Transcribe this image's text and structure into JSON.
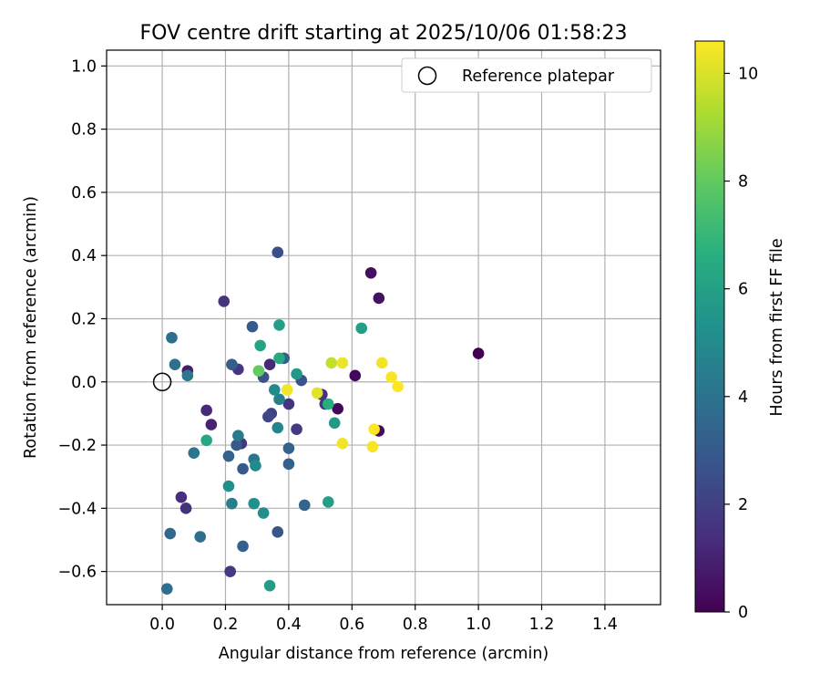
{
  "chart_data": {
    "type": "scatter",
    "title": "FOV centre drift starting at 2025/10/06 01:58:23",
    "xlabel": "Angular distance from reference (arcmin)",
    "ylabel": "Rotation from reference (arcmin)",
    "xlim": [
      -0.176,
      1.576
    ],
    "ylim": [
      -0.705,
      1.05
    ],
    "grid": true,
    "xticks": [
      0.0,
      0.2,
      0.4,
      0.6,
      0.8,
      1.0,
      1.2,
      1.4
    ],
    "xtick_labels": [
      "0.0",
      "0.2",
      "0.4",
      "0.6",
      "0.8",
      "1.0",
      "1.2",
      "1.4"
    ],
    "yticks": [
      -0.6,
      -0.4,
      -0.2,
      0.0,
      0.2,
      0.4,
      0.6,
      0.8,
      1.0
    ],
    "ytick_labels": [
      "−0.6",
      "−0.4",
      "−0.2",
      "0.0",
      "0.2",
      "0.4",
      "0.6",
      "0.8",
      "1.0"
    ],
    "legend": {
      "position": "top-right",
      "entries": [
        "Reference platepar"
      ]
    },
    "reference_point": {
      "x": 0.0,
      "y": 0.0
    },
    "colorbar": {
      "label": "Hours from first FF file",
      "colormap": "viridis",
      "min": 0,
      "max": 10.6,
      "ticks": [
        0,
        2,
        4,
        6,
        8,
        10
      ],
      "tick_labels": [
        "0",
        "2",
        "4",
        "6",
        "8",
        "10"
      ]
    },
    "points": [
      {
        "x": 1.0,
        "y": 0.09,
        "hours": 0.0
      },
      {
        "x": 0.66,
        "y": 0.345,
        "hours": 0.4
      },
      {
        "x": 0.685,
        "y": 0.265,
        "hours": 0.5
      },
      {
        "x": 0.61,
        "y": 0.02,
        "hours": 0.2
      },
      {
        "x": 0.685,
        "y": -0.155,
        "hours": 0.3
      },
      {
        "x": 0.555,
        "y": -0.085,
        "hours": 0.2
      },
      {
        "x": 0.08,
        "y": 0.035,
        "hours": 0.8
      },
      {
        "x": 0.505,
        "y": -0.04,
        "hours": 1.6
      },
      {
        "x": 0.515,
        "y": -0.07,
        "hours": 1.8
      },
      {
        "x": 0.195,
        "y": 0.255,
        "hours": 1.6
      },
      {
        "x": 0.14,
        "y": -0.09,
        "hours": 1.2
      },
      {
        "x": 0.155,
        "y": -0.135,
        "hours": 1.0
      },
      {
        "x": 0.06,
        "y": -0.365,
        "hours": 1.4
      },
      {
        "x": 0.075,
        "y": -0.4,
        "hours": 1.5
      },
      {
        "x": 0.215,
        "y": -0.6,
        "hours": 1.8
      },
      {
        "x": 0.25,
        "y": -0.195,
        "hours": 1.6
      },
      {
        "x": 0.24,
        "y": 0.04,
        "hours": 1.7
      },
      {
        "x": 0.34,
        "y": 0.055,
        "hours": 1.2
      },
      {
        "x": 0.345,
        "y": -0.1,
        "hours": 2.0
      },
      {
        "x": 0.335,
        "y": -0.11,
        "hours": 2.3
      },
      {
        "x": 0.4,
        "y": -0.07,
        "hours": 1.6
      },
      {
        "x": 0.425,
        "y": -0.15,
        "hours": 1.8
      },
      {
        "x": 0.365,
        "y": 0.41,
        "hours": 2.5
      },
      {
        "x": 0.32,
        "y": 0.015,
        "hours": 2.6
      },
      {
        "x": 0.365,
        "y": -0.475,
        "hours": 2.8
      },
      {
        "x": 0.44,
        "y": 0.005,
        "hours": 2.7
      },
      {
        "x": 0.285,
        "y": 0.175,
        "hours": 3.0
      },
      {
        "x": 0.22,
        "y": 0.055,
        "hours": 3.1
      },
      {
        "x": 0.21,
        "y": -0.235,
        "hours": 3.3
      },
      {
        "x": 0.235,
        "y": -0.2,
        "hours": 3.0
      },
      {
        "x": 0.255,
        "y": -0.275,
        "hours": 3.0
      },
      {
        "x": 0.255,
        "y": -0.52,
        "hours": 3.2
      },
      {
        "x": 0.385,
        "y": 0.075,
        "hours": 3.2
      },
      {
        "x": 0.4,
        "y": -0.21,
        "hours": 3.3
      },
      {
        "x": 0.4,
        "y": -0.26,
        "hours": 3.3
      },
      {
        "x": 0.45,
        "y": -0.39,
        "hours": 3.4
      },
      {
        "x": 0.03,
        "y": 0.14,
        "hours": 3.8
      },
      {
        "x": 0.04,
        "y": 0.055,
        "hours": 3.9
      },
      {
        "x": 0.025,
        "y": -0.48,
        "hours": 3.6
      },
      {
        "x": 0.12,
        "y": -0.49,
        "hours": 3.8
      },
      {
        "x": 0.015,
        "y": -0.655,
        "hours": 3.8
      },
      {
        "x": 0.08,
        "y": 0.02,
        "hours": 4.2
      },
      {
        "x": 0.1,
        "y": -0.225,
        "hours": 4.1
      },
      {
        "x": 0.24,
        "y": -0.17,
        "hours": 4.3
      },
      {
        "x": 0.29,
        "y": -0.245,
        "hours": 4.0
      },
      {
        "x": 0.22,
        "y": -0.385,
        "hours": 4.5
      },
      {
        "x": 0.37,
        "y": -0.055,
        "hours": 4.6
      },
      {
        "x": 0.365,
        "y": -0.145,
        "hours": 4.8
      },
      {
        "x": 0.295,
        "y": -0.265,
        "hours": 5.0
      },
      {
        "x": 0.355,
        "y": -0.025,
        "hours": 5.0
      },
      {
        "x": 0.32,
        "y": -0.415,
        "hours": 5.2
      },
      {
        "x": 0.21,
        "y": -0.33,
        "hours": 5.2
      },
      {
        "x": 0.29,
        "y": -0.385,
        "hours": 5.3
      },
      {
        "x": 0.425,
        "y": 0.025,
        "hours": 5.6
      },
      {
        "x": 0.545,
        "y": -0.13,
        "hours": 5.6
      },
      {
        "x": 0.37,
        "y": 0.18,
        "hours": 5.9
      },
      {
        "x": 0.63,
        "y": 0.17,
        "hours": 5.9
      },
      {
        "x": 0.31,
        "y": 0.115,
        "hours": 6.1
      },
      {
        "x": 0.525,
        "y": -0.38,
        "hours": 5.9
      },
      {
        "x": 0.34,
        "y": -0.645,
        "hours": 5.8
      },
      {
        "x": 0.37,
        "y": 0.075,
        "hours": 6.4
      },
      {
        "x": 0.525,
        "y": -0.07,
        "hours": 6.6
      },
      {
        "x": 0.14,
        "y": -0.185,
        "hours": 6.3
      },
      {
        "x": 0.305,
        "y": 0.035,
        "hours": 8.0
      },
      {
        "x": 0.535,
        "y": 0.06,
        "hours": 9.6
      },
      {
        "x": 0.57,
        "y": 0.06,
        "hours": 10.3
      },
      {
        "x": 0.395,
        "y": -0.025,
        "hours": 10.4
      },
      {
        "x": 0.49,
        "y": -0.035,
        "hours": 10.1
      },
      {
        "x": 0.57,
        "y": -0.195,
        "hours": 10.4
      },
      {
        "x": 0.665,
        "y": -0.205,
        "hours": 10.5
      },
      {
        "x": 0.67,
        "y": -0.15,
        "hours": 10.6
      },
      {
        "x": 0.695,
        "y": 0.06,
        "hours": 10.4
      },
      {
        "x": 0.725,
        "y": 0.015,
        "hours": 10.5
      },
      {
        "x": 0.745,
        "y": -0.015,
        "hours": 10.6
      }
    ]
  }
}
